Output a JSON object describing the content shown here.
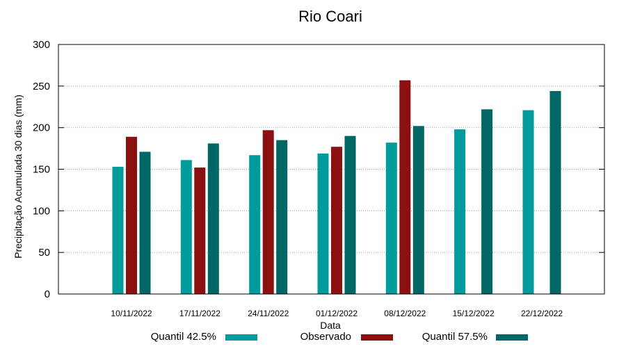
{
  "chart_data": {
    "type": "bar",
    "title": "Rio Coari",
    "xlabel": "Data",
    "ylabel": "Precipitação Acumulada 30 dias (mm)",
    "ylim": [
      0,
      300
    ],
    "yticks": [
      0,
      50,
      100,
      150,
      200,
      250,
      300
    ],
    "grid": true,
    "legend_position": "bottom",
    "categories": [
      "10/11/2022",
      "17/11/2022",
      "24/11/2022",
      "01/12/2022",
      "08/12/2022",
      "15/12/2022",
      "22/12/2022"
    ],
    "series": [
      {
        "name": "Quantil 42.5%",
        "color": "#009c9c",
        "values": [
          153,
          161,
          167,
          169,
          182,
          198,
          221
        ]
      },
      {
        "name": "Observado",
        "color": "#8b1010",
        "values": [
          189,
          152,
          197,
          177,
          257,
          null,
          null
        ]
      },
      {
        "name": "Quantil 57.5%",
        "color": "#006666",
        "values": [
          171,
          181,
          185,
          190,
          202,
          222,
          244
        ]
      }
    ]
  }
}
